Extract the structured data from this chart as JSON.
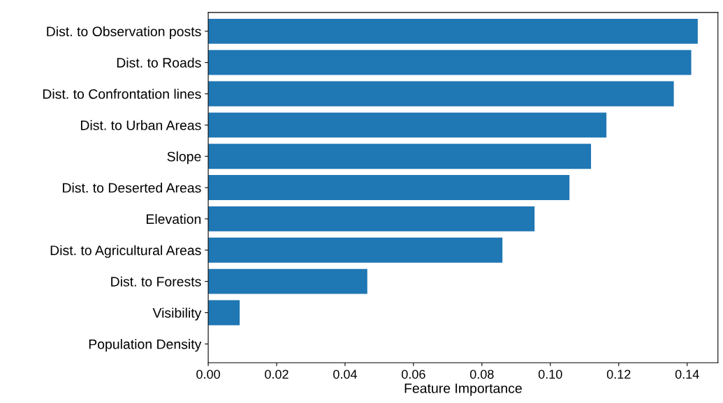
{
  "chart_data": {
    "type": "bar",
    "orientation": "horizontal",
    "xlabel": "Feature Importance",
    "categories": [
      "Dist. to Observation posts",
      "Dist. to Roads",
      "Dist. to Confrontation lines",
      "Dist. to Urban Areas",
      "Slope",
      "Dist. to Deserted Areas",
      "Elevation",
      "Dist. to Agricultural Areas",
      "Dist. to Forests",
      "Visibility",
      "Population Density"
    ],
    "values": [
      0.1431,
      0.1412,
      0.1361,
      0.1164,
      0.1119,
      0.1056,
      0.0954,
      0.086,
      0.0465,
      0.0092,
      0.0
    ],
    "color": "#1f77b4",
    "xlim": [
      0,
      0.149
    ],
    "xticks": [
      {
        "value": 0,
        "label": "0.00"
      },
      {
        "value": 0.02,
        "label": "0.02"
      },
      {
        "value": 0.04,
        "label": "0.04"
      },
      {
        "value": 0.06,
        "label": "0.06"
      },
      {
        "value": 0.08,
        "label": "0.08"
      },
      {
        "value": 0.1,
        "label": "0.10"
      },
      {
        "value": 0.12,
        "label": "0.12"
      },
      {
        "value": 0.14,
        "label": "0.14"
      }
    ],
    "grid": false,
    "legend": false
  }
}
